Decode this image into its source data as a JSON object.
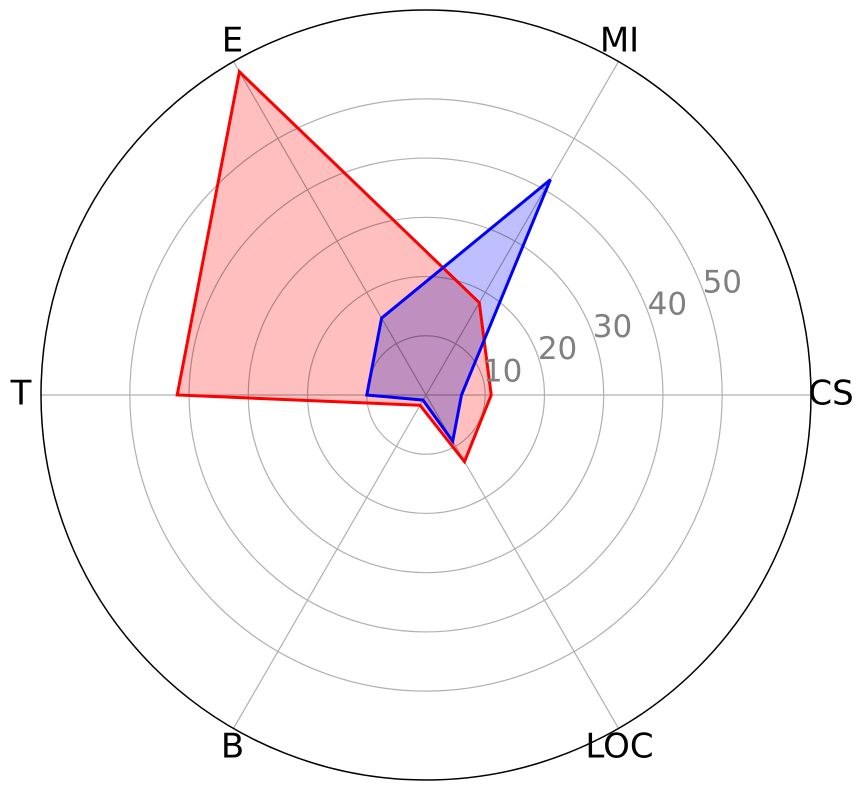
{
  "chart_data": {
    "type": "radar",
    "title": "",
    "categories": [
      "CS",
      "MI",
      "E",
      "T",
      "B",
      "LOC"
    ],
    "rmax": 65,
    "rings": [
      10,
      20,
      30,
      40,
      50
    ],
    "tick_labels": [
      "10",
      "20",
      "30",
      "40",
      "50"
    ],
    "series": [
      {
        "values": [
          11,
          18,
          63,
          42,
          2,
          13
        ],
        "stroke": "#ff0000",
        "fill": "#ffbfbf"
      },
      {
        "values": [
          6,
          42,
          15,
          10,
          1,
          9
        ],
        "stroke": "#0000ff",
        "fill": "#bfbfff"
      }
    ],
    "grid": true,
    "colors": {
      "grid": "#b0b0b0",
      "outer": "#000000",
      "tick_text": "#808080",
      "overlap": "#cc8fc8"
    }
  }
}
